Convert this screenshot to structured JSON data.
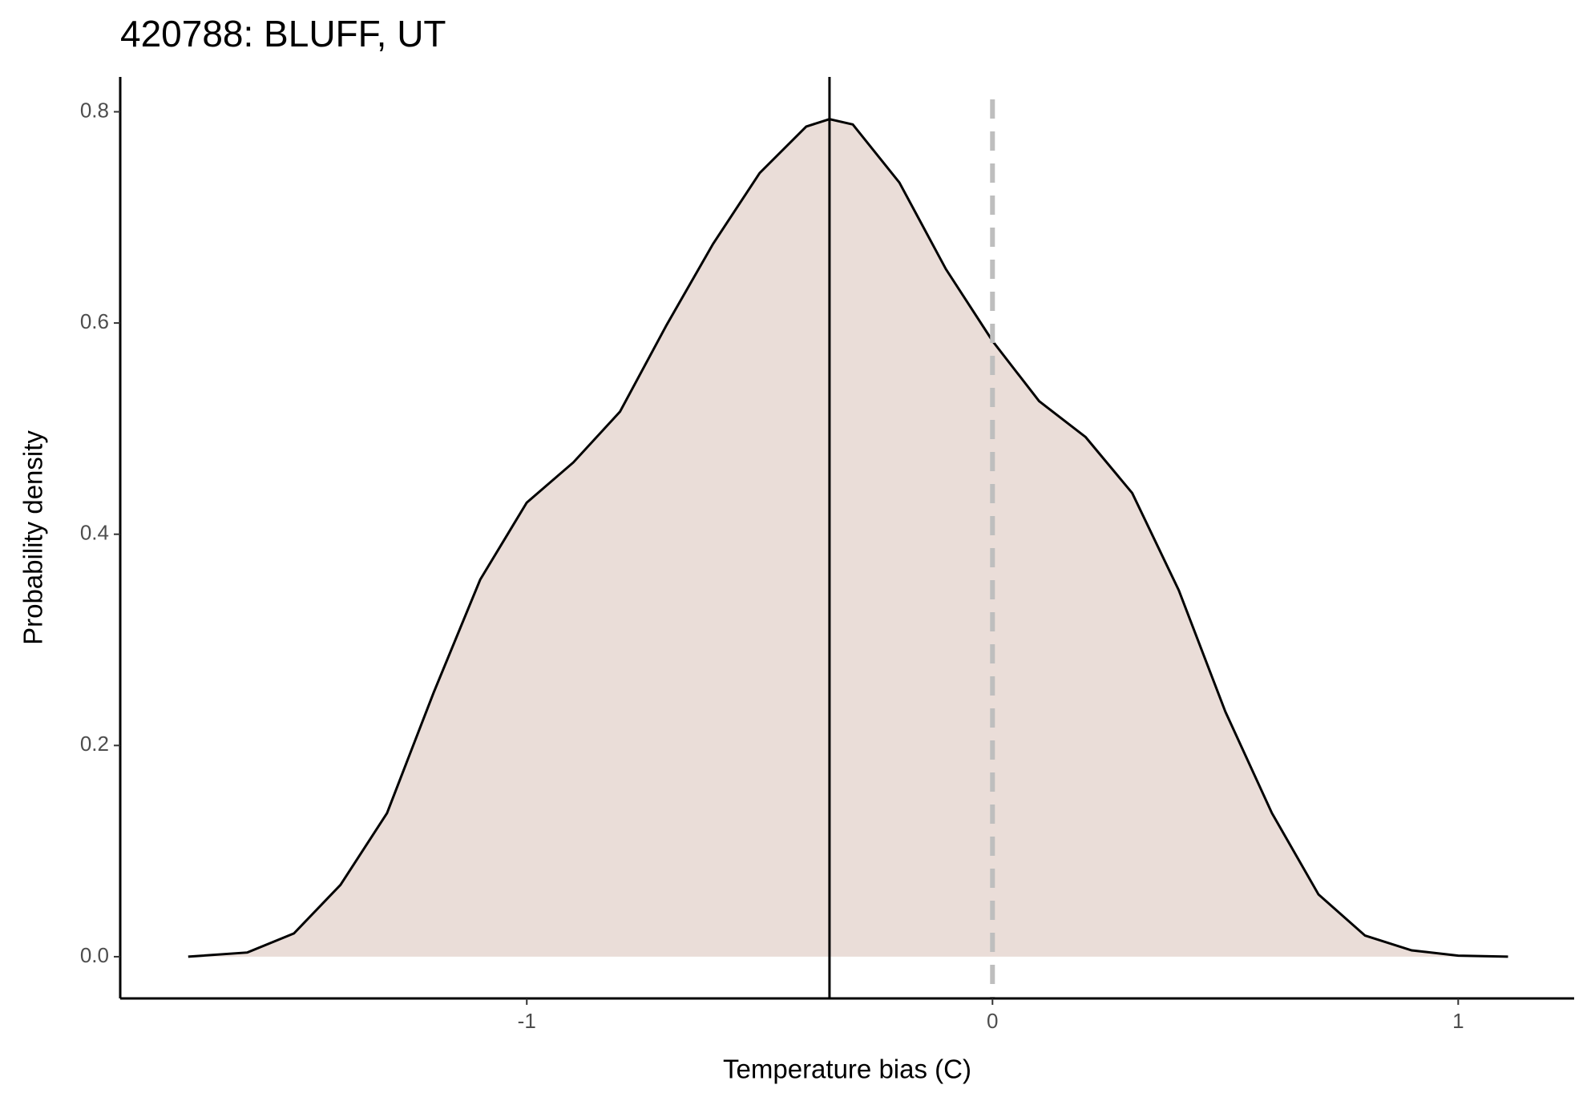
{
  "chart_data": {
    "type": "density",
    "title": "420788: BLUFF, UT",
    "x_label": "Temperature bias (C)",
    "y_label": "Probability density",
    "x": [
      -1.727,
      -1.6,
      -1.5,
      -1.4,
      -1.3,
      -1.2,
      -1.1,
      -1.0,
      -0.9,
      -0.8,
      -0.7,
      -0.6,
      -0.5,
      -0.4,
      -0.35,
      -0.3,
      -0.2,
      -0.1,
      0,
      0.1,
      0.2,
      0.3,
      0.4,
      0.5,
      0.6,
      0.7,
      0.8,
      0.9,
      1.0,
      1.107
    ],
    "values": [
      0,
      0.004,
      0.022,
      0.068,
      0.136,
      0.25,
      0.357,
      0.43,
      0.468,
      0.516,
      0.598,
      0.675,
      0.742,
      0.786,
      0.793,
      0.788,
      0.733,
      0.651,
      0.583,
      0.526,
      0.492,
      0.439,
      0.347,
      0.232,
      0.136,
      0.059,
      0.02,
      0.006,
      0.001,
      0
    ],
    "color": "#000000",
    "fill": "#eaddd8",
    "reference_lines": [
      {
        "x": -0.35,
        "color": "#000000",
        "dashed": false
      },
      {
        "x": 0,
        "color": "#bebebe",
        "dashed": true
      }
    ],
    "xlim": [
      -1.873,
      1.249
    ],
    "ylim": [
      -0.0395,
      0.833
    ],
    "xticks": [
      -1,
      0,
      1
    ],
    "yticks": [
      {
        "value": 0,
        "label": "0.0"
      },
      0.2,
      0.4,
      0.6,
      0.8
    ],
    "grid": false
  }
}
